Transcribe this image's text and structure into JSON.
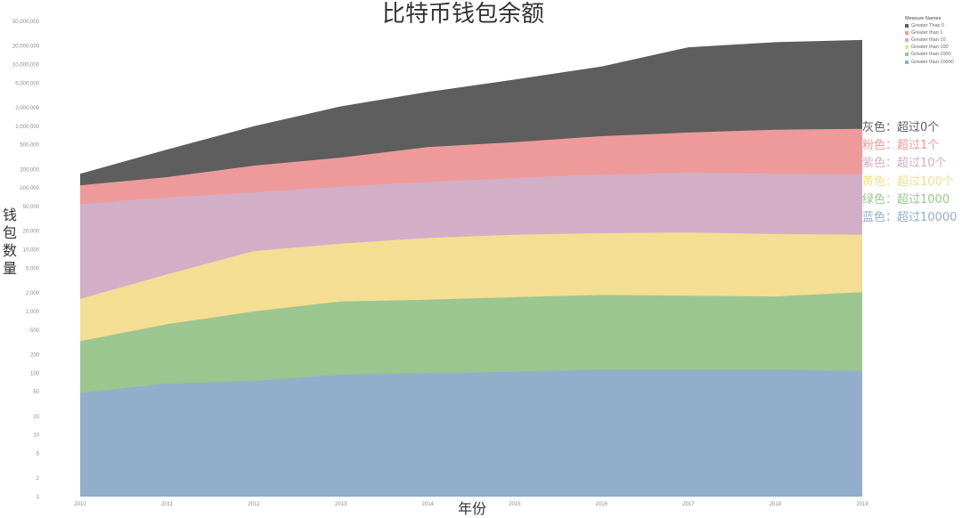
{
  "chart_data": {
    "type": "area",
    "title": "比特币钱包余额",
    "xlabel": "年份",
    "ylabel": "钱包数量",
    "yscale": "log",
    "ylim": [
      1,
      50000000
    ],
    "stacked": true,
    "x": [
      2010,
      2011,
      2012,
      2013,
      2014,
      2015,
      2016,
      2017,
      2018,
      2019
    ],
    "y_ticks": [
      1,
      2,
      5,
      10,
      20,
      50,
      100,
      200,
      500,
      1000,
      2000,
      5000,
      10000,
      20000,
      50000,
      100000,
      200000,
      500000,
      1000000,
      2000000,
      5000000,
      10000000,
      20000000,
      50000000
    ],
    "y_tick_labels": [
      "1",
      "2",
      "5",
      "10",
      "20",
      "50",
      "100",
      "200",
      "500",
      "1,000",
      "2,000",
      "5,000",
      "10,000",
      "20,000",
      "50,000",
      "100,000",
      "200,000",
      "500,000",
      "1,000,000",
      "2,000,000",
      "5,000,000",
      "10,000,000",
      "20,000,000",
      "50,000,000"
    ],
    "legend_title": "Measure Names",
    "legend_position": "top-right",
    "series": [
      {
        "name": "Greater Than 0",
        "color": "#5e5e5e",
        "values": [
          170000,
          420000,
          1000000,
          2100000,
          3600000,
          5700000,
          9300000,
          19000000,
          23000000,
          25000000
        ]
      },
      {
        "name": "Greater than 1",
        "color": "#ee9a9a",
        "values": [
          110000,
          150000,
          230000,
          310000,
          460000,
          550000,
          690000,
          790000,
          880000,
          910000
        ]
      },
      {
        "name": "Greater than 10",
        "color": "#d3afc7",
        "values": [
          55000,
          70000,
          85000,
          105000,
          125000,
          145000,
          165000,
          175000,
          170000,
          168000
        ]
      },
      {
        "name": "Greater than 100",
        "color": "#f3de93",
        "values": [
          1600,
          4000,
          9500,
          12500,
          15500,
          17500,
          18500,
          19000,
          18000,
          17500
        ]
      },
      {
        "name": "Greater than 1000",
        "color": "#9cc690",
        "values": [
          330,
          620,
          1000,
          1450,
          1550,
          1700,
          1850,
          1800,
          1750,
          2050
        ]
      },
      {
        "name": "Greater than 10000",
        "color": "#93aecb",
        "values": [
          48,
          68,
          75,
          95,
          100,
          105,
          115,
          115,
          115,
          108
        ]
      }
    ],
    "annotations": [
      {
        "text": "灰色：超过0个",
        "color": "#5e5e5e"
      },
      {
        "text": "粉色：超过1个",
        "color": "#ee9a9a"
      },
      {
        "text": "紫色：超过10个",
        "color": "#d3afc7"
      },
      {
        "text": "黄色：超过100个",
        "color": "#f3de93"
      },
      {
        "text": "绿色：超过1000",
        "color": "#9cc690"
      },
      {
        "text": "蓝色：超过10000",
        "color": "#93aecb"
      }
    ]
  }
}
